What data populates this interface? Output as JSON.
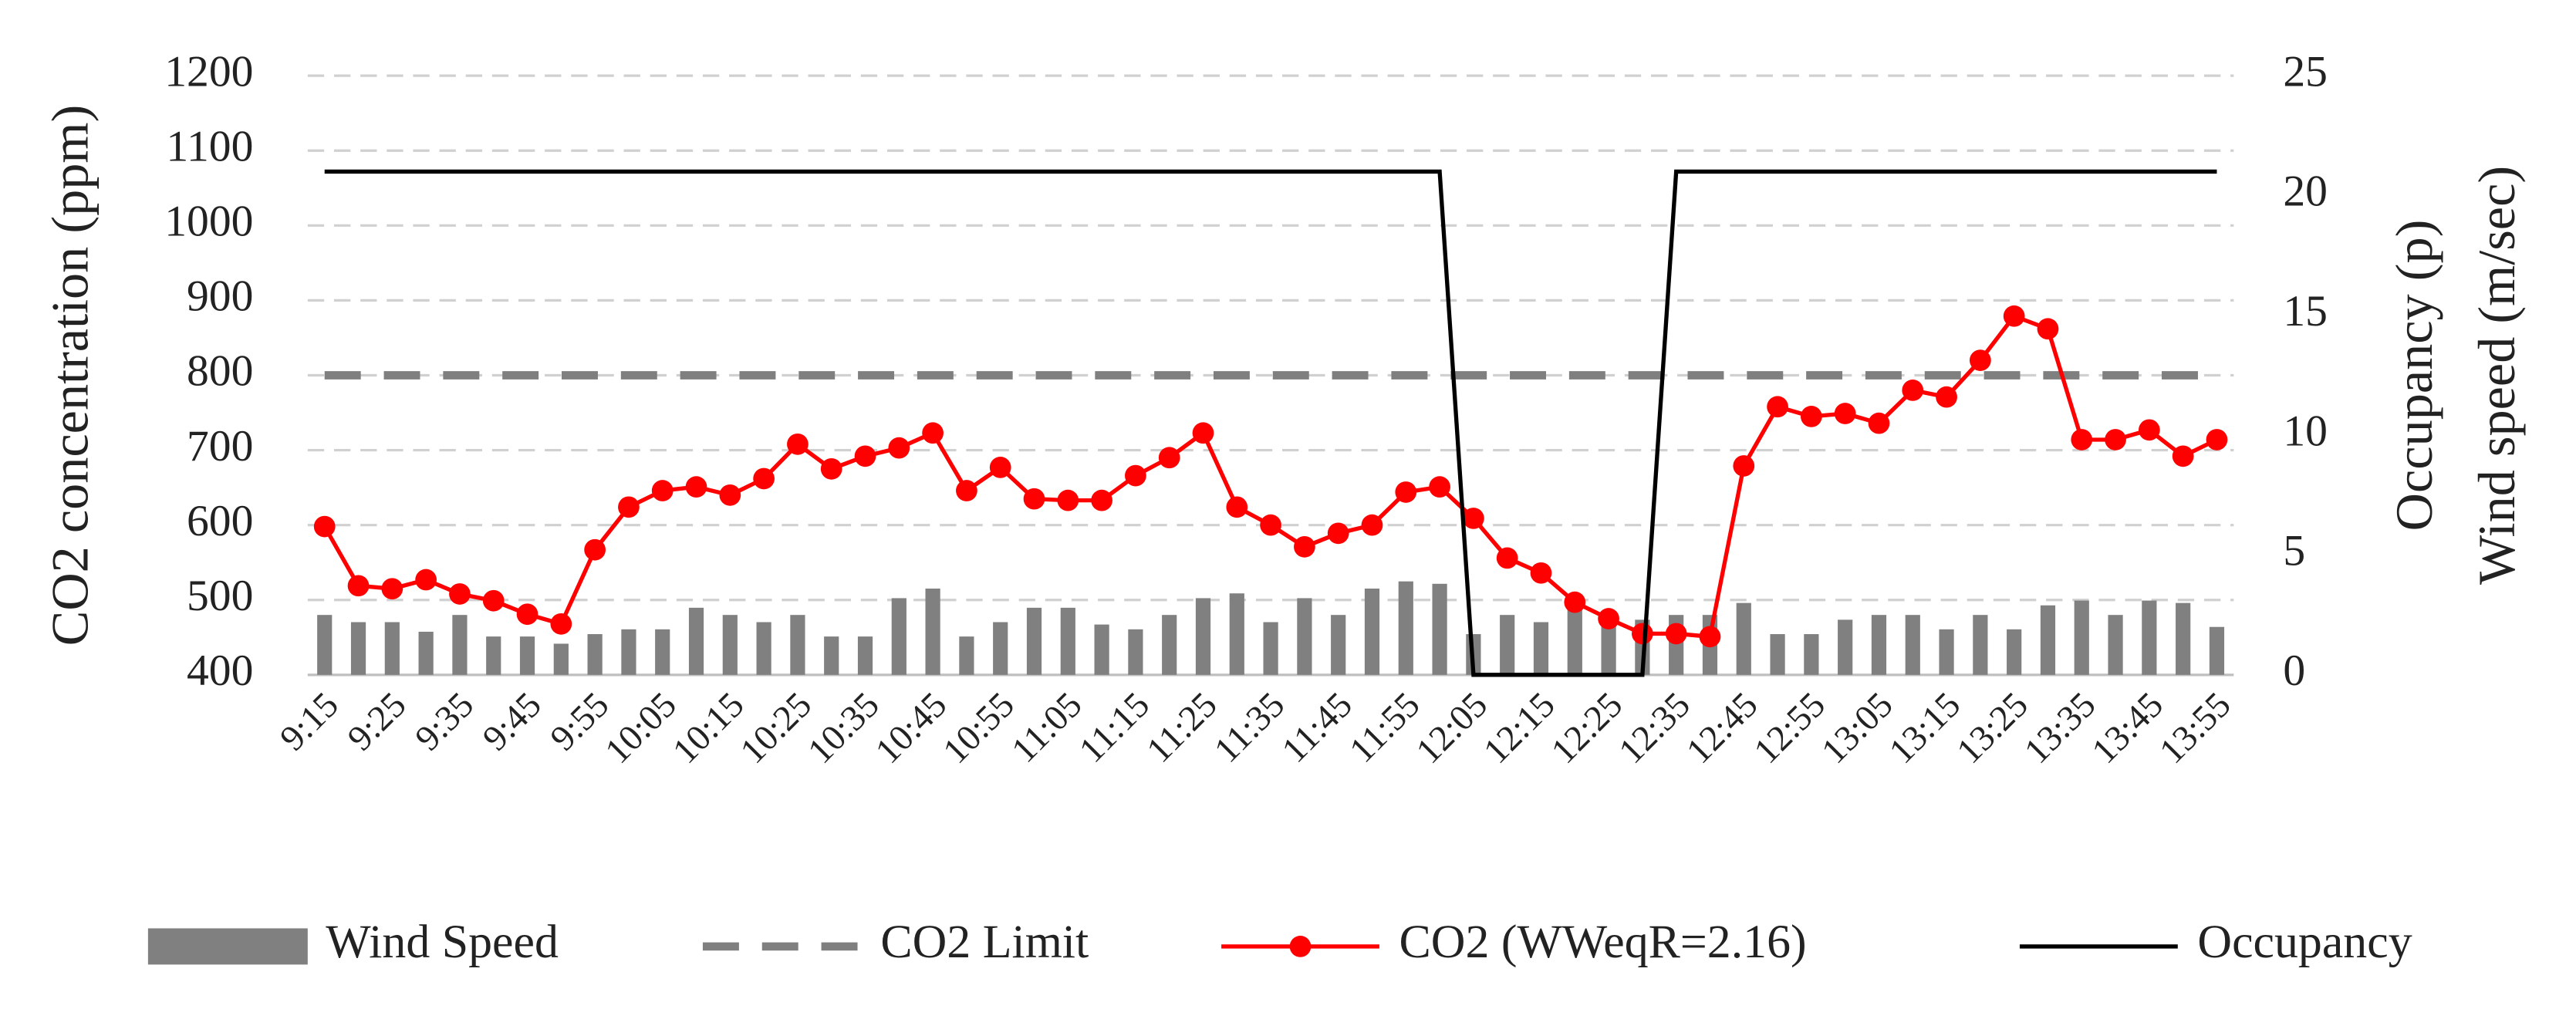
{
  "chart_data": {
    "type": "combo",
    "ylabel": "CO2 concentration (ppm)",
    "y2label": [
      "Occupancy (p)",
      "Wind speed (m/sec)"
    ],
    "categories": [
      "9:15",
      null,
      "9:25",
      null,
      "9:35",
      null,
      "9:45",
      null,
      "9:55",
      null,
      "10:05",
      null,
      "10:15",
      null,
      "10:25",
      null,
      "10:35",
      null,
      "10:45",
      null,
      "10:55",
      null,
      "11:05",
      null,
      "11:15",
      null,
      "11:25",
      null,
      "11:35",
      null,
      "11:45",
      null,
      "11:55",
      null,
      "12:05",
      null,
      "12:15",
      null,
      "12:25",
      null,
      "12:35",
      null,
      "12:45",
      null,
      "12:55",
      null,
      "13:05",
      null,
      "13:15",
      null,
      "13:25",
      null,
      "13:35",
      null,
      "13:45",
      null,
      "13:55"
    ],
    "ylim": [
      400,
      1200
    ],
    "yticks": [
      400,
      500,
      600,
      700,
      800,
      900,
      1000,
      1100,
      1200
    ],
    "y2lim": [
      0,
      25
    ],
    "y2ticks": [
      0,
      5,
      10,
      15,
      20,
      25
    ],
    "grid": true,
    "legend": "bottom",
    "series": [
      {
        "name": "Wind Speed",
        "type": "bar",
        "axis": "y2",
        "color": "#808080",
        "values": [
          2.5,
          2.2,
          2.2,
          1.8,
          2.5,
          1.6,
          1.6,
          1.3,
          1.7,
          1.9,
          1.9,
          2.8,
          2.5,
          2.2,
          2.5,
          1.6,
          1.6,
          3.2,
          3.6,
          1.6,
          2.2,
          2.8,
          2.8,
          2.1,
          1.9,
          2.5,
          3.2,
          3.4,
          2.2,
          3.2,
          2.5,
          3.6,
          3.9,
          3.8,
          1.7,
          2.5,
          2.2,
          2.9,
          2.5,
          2.3,
          2.5,
          2.5,
          3.0,
          1.7,
          1.7,
          2.3,
          2.5,
          2.5,
          1.9,
          2.5,
          1.9,
          2.9,
          3.1,
          2.5,
          3.1,
          3.0,
          2.0
        ]
      },
      {
        "name": "CO2 Limit",
        "type": "line",
        "dashed": true,
        "color": "#7f7f7f",
        "values": [
          800,
          800,
          800,
          800,
          800,
          800,
          800,
          800,
          800,
          800,
          800,
          800,
          800,
          800,
          800,
          800,
          800,
          800,
          800,
          800,
          800,
          800,
          800,
          800,
          800,
          800,
          800,
          800,
          800,
          800,
          800,
          800,
          800,
          800,
          800,
          800,
          800,
          800,
          800,
          800,
          800,
          800,
          800,
          800,
          800,
          800,
          800,
          800,
          800,
          800,
          800,
          800,
          800,
          800,
          800,
          800,
          800
        ]
      },
      {
        "name": "CO2 (WWeqR=2.16)",
        "type": "line",
        "markers": true,
        "color": "#ff0000",
        "values": [
          598,
          519,
          515,
          527,
          508,
          499,
          481,
          468,
          567,
          624,
          646,
          651,
          640,
          662,
          708,
          675,
          692,
          703,
          723,
          646,
          677,
          635,
          633,
          633,
          666,
          690,
          723,
          624,
          600,
          571,
          589,
          600,
          644,
          651,
          609,
          556,
          536,
          497,
          475,
          455,
          455,
          451,
          679,
          758,
          745,
          749,
          736,
          780,
          771,
          820,
          879,
          862,
          714,
          714,
          727,
          692,
          714
        ]
      },
      {
        "name": "Occupancy",
        "type": "line",
        "axis": "y2",
        "color": "#000000",
        "values": [
          21,
          21,
          21,
          21,
          21,
          21,
          21,
          21,
          21,
          21,
          21,
          21,
          21,
          21,
          21,
          21,
          21,
          21,
          21,
          21,
          21,
          21,
          21,
          21,
          21,
          21,
          21,
          21,
          21,
          21,
          21,
          21,
          21,
          21,
          0,
          0,
          0,
          0,
          0,
          0,
          21,
          21,
          21,
          21,
          21,
          21,
          21,
          21,
          21,
          21,
          21,
          21,
          21,
          21,
          21,
          21,
          21
        ]
      }
    ]
  }
}
